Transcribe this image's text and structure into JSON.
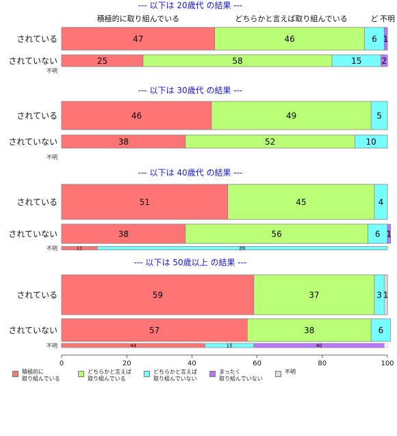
{
  "chart_data": {
    "type": "bar",
    "orientation": "horizontal",
    "stacked": "100%",
    "xlim": [
      0,
      100
    ],
    "x_ticks": [
      0,
      20,
      40,
      60,
      80,
      100
    ],
    "series": [
      {
        "name": "積極的に\n取り組んでいる",
        "color": "#ff7575"
      },
      {
        "name": "どちらかと言えば\n取り組んでいる",
        "color": "#bbff77"
      },
      {
        "name": "どちらかと言えば\n取り組んでいない",
        "color": "#77ffff"
      },
      {
        "name": "まったく\n取り組んでいない",
        "color": "#bb77ff"
      },
      {
        "name": "不明",
        "color": "#dddddd"
      }
    ],
    "top_labels": [
      {
        "text": "積極的に取り組んでいる",
        "x": 23.5
      },
      {
        "text": "どちらかと言えば取り組んでいる",
        "x": 70.5
      },
      {
        "text": "ど",
        "x": 96
      },
      {
        "text": "不明",
        "x": 100
      }
    ],
    "panels": [
      {
        "title": "--- 以下は 20歳代 の結果 ---",
        "rows": [
          {
            "label": "されている",
            "values": [
              47,
              46,
              6,
              1,
              0
            ],
            "labels": [
              "47",
              "46",
              "6",
              "1",
              ""
            ]
          },
          {
            "label": "されていない",
            "values": [
              25,
              58,
              15,
              2,
              0
            ],
            "labels": [
              "25",
              "58",
              "15",
              "2",
              ""
            ]
          }
        ],
        "unknown": {
          "label": "不明",
          "values": [],
          "labels": []
        }
      },
      {
        "title": "--- 以下は 30歳代 の結果 ---",
        "rows": [
          {
            "label": "されている",
            "values": [
              46,
              49,
              5,
              0,
              0
            ],
            "labels": [
              "46",
              "49",
              "5",
              "",
              ""
            ]
          },
          {
            "label": "されていない",
            "values": [
              38,
              52,
              10,
              0,
              0
            ],
            "labels": [
              "38",
              "52",
              "10",
              "",
              ""
            ]
          }
        ],
        "unknown": {
          "label": "不明",
          "values": [],
          "labels": []
        }
      },
      {
        "title": "--- 以下は 40歳代 の結果 ---",
        "rows": [
          {
            "label": "されている",
            "values": [
              51,
              45,
              4,
              0,
              0
            ],
            "labels": [
              "51",
              "45",
              "4",
              "",
              ""
            ]
          },
          {
            "label": "されていない",
            "values": [
              38,
              56,
              6,
              1,
              0
            ],
            "labels": [
              "38",
              "56",
              "6",
              "1",
              ""
            ]
          }
        ],
        "unknown": {
          "label": "不明",
          "values": [
            11,
            0,
            89,
            0,
            0
          ],
          "labels": [
            "11",
            "",
            "89",
            "",
            ""
          ]
        }
      },
      {
        "title": "--- 以下は 50歳以上 の結果 ---",
        "rows": [
          {
            "label": "されている",
            "values": [
              59,
              37,
              3,
              0,
              1
            ],
            "labels": [
              "59",
              "37",
              "3",
              "",
              "1"
            ]
          },
          {
            "label": "されていない",
            "values": [
              57,
              38,
              6,
              0,
              0
            ],
            "labels": [
              "57",
              "38",
              "6",
              "",
              ""
            ]
          }
        ],
        "unknown": {
          "label": "不明",
          "values": [
            44,
            0,
            15,
            40,
            0
          ],
          "labels": [
            "44",
            "",
            "15",
            "40",
            ""
          ]
        }
      }
    ]
  }
}
